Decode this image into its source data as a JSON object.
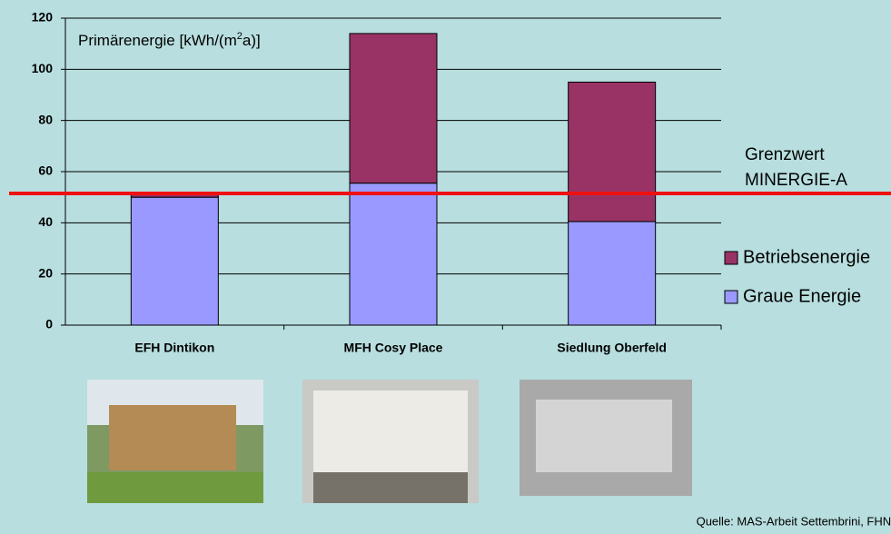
{
  "chart_data": {
    "type": "stacked_bar",
    "y_label_parts": [
      "Primärenergie [kWh/(m",
      "2",
      "a)]"
    ],
    "categories": [
      "EFH Dintikon",
      "MFH Cosy Place",
      "Siedlung Oberfeld"
    ],
    "series": [
      {
        "name": "Graue Energie",
        "color": "#9999ff",
        "values": [
          50,
          55.5,
          40.5
        ]
      },
      {
        "name": "Betriebsenergie",
        "color": "#993366",
        "values": [
          1,
          58.5,
          54.5
        ]
      }
    ],
    "ylim": [
      0,
      120
    ],
    "yticks": [
      0,
      20,
      40,
      60,
      80,
      100,
      120
    ],
    "grid": true,
    "threshold": {
      "value": 51.5,
      "label": [
        "Grenzwert",
        "MINERGIE-A"
      ],
      "color": "#ee1111"
    },
    "source": "Quelle: MAS-Arbeit Settembrini, FHNW"
  }
}
